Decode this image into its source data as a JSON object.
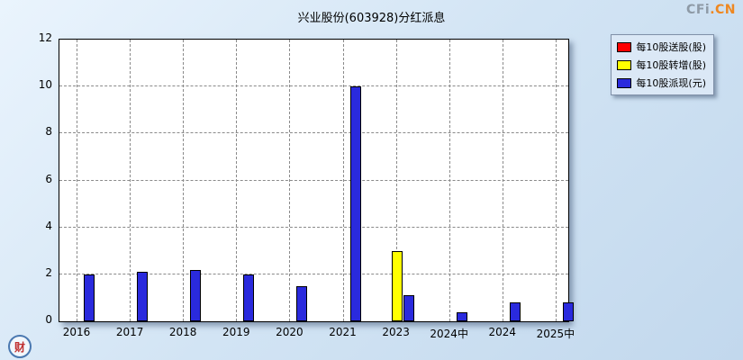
{
  "page": {
    "watermark_top_right_gray": "CFi",
    "watermark_top_right_orange": ".CN",
    "watermark_bottom_left": "财"
  },
  "chart_data": {
    "type": "bar",
    "title": "兴业股份(603928)分红派息",
    "categories": [
      "2016",
      "2017",
      "2018",
      "2019",
      "2020",
      "2021",
      "2023",
      "2024中",
      "2024",
      "2025中"
    ],
    "series": [
      {
        "name": "每10股送股(股)",
        "color": "#ff0000",
        "values": [
          0,
          0,
          0,
          0,
          0,
          0,
          0,
          0,
          0,
          0
        ]
      },
      {
        "name": "每10股转增(股)",
        "color": "#ffff00",
        "values": [
          0,
          0,
          0,
          0,
          0,
          0,
          3.0,
          0,
          0,
          0
        ]
      },
      {
        "name": "每10股派现(元)",
        "color": "#2a2add",
        "values": [
          2.0,
          2.1,
          2.2,
          2.0,
          1.5,
          10.0,
          1.1,
          0.4,
          0.8,
          0.8
        ]
      }
    ],
    "xlabel": "",
    "ylabel": "",
    "ylim": [
      0,
      12
    ],
    "yticks": [
      0,
      2,
      4,
      6,
      8,
      10,
      12
    ],
    "grid": "dashed-both-axes",
    "legend_position": "top-right",
    "plot_background": "#ffffff",
    "page_background": "#cfe2f3"
  }
}
